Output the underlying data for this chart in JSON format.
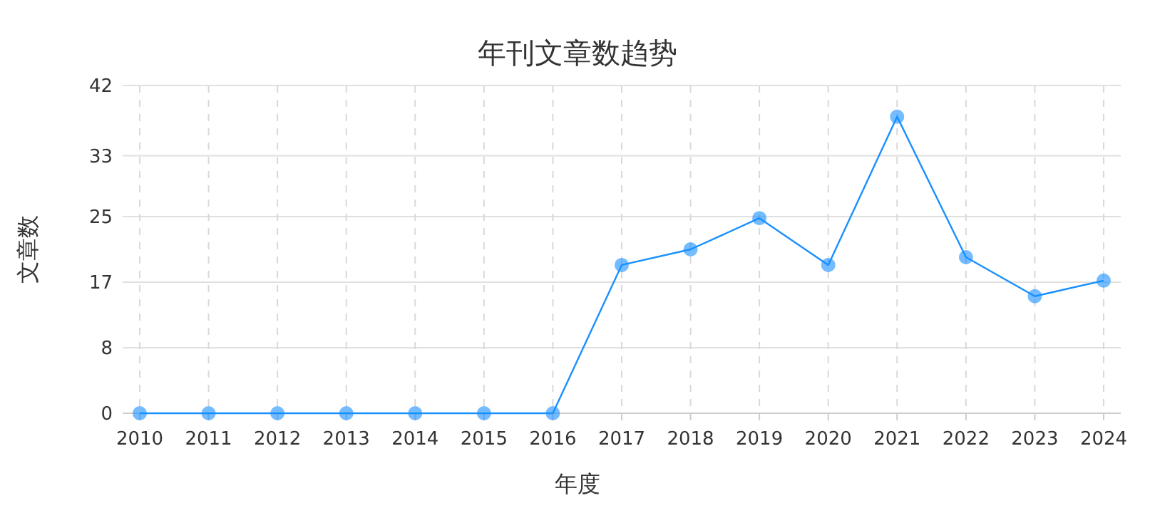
{
  "chart_data": {
    "type": "line",
    "title": "年刊文章数趋势",
    "xlabel": "年度",
    "ylabel": "文章数",
    "categories": [
      "2010",
      "2011",
      "2012",
      "2013",
      "2014",
      "2015",
      "2016",
      "2017",
      "2018",
      "2019",
      "2020",
      "2021",
      "2022",
      "2023",
      "2024"
    ],
    "series": [
      {
        "color": "#1890ff",
        "values": [
          0,
          0,
          0,
          0,
          0,
          0,
          0,
          19,
          21,
          25,
          19,
          38,
          20,
          15,
          17
        ]
      }
    ],
    "ylim": [
      0,
      42
    ],
    "yticks": [
      0,
      {
        "value": 8.4,
        "label": "8"
      },
      {
        "value": 16.8,
        "label": "17"
      },
      {
        "value": 25.2,
        "label": "25"
      },
      33,
      42
    ],
    "grid": true,
    "marker": "circle",
    "line_style": "solid"
  }
}
